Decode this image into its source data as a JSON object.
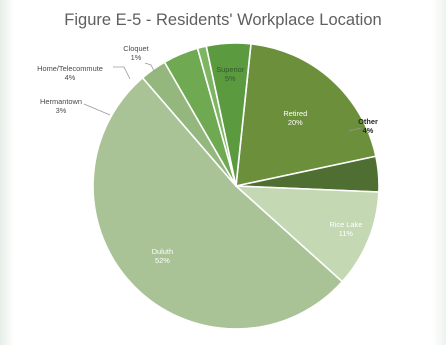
{
  "chart_data": {
    "type": "pie",
    "title": "Figure E-5 - Residents' Workplace Location",
    "slices": [
      {
        "name": "Retired",
        "value": 20,
        "label": "20%",
        "color": "#6b8f3a"
      },
      {
        "name": "Other",
        "value": 4,
        "label": "4%",
        "color": "#4f6e31"
      },
      {
        "name": "Rice Lake",
        "value": 11,
        "label": "11%",
        "color": "#c5d8b4"
      },
      {
        "name": "Duluth",
        "value": 52,
        "label": "52%",
        "color": "#a9c396"
      },
      {
        "name": "Hermantown",
        "value": 3,
        "label": "3%",
        "color": "#94b77e"
      },
      {
        "name": "Home/Telecommute",
        "value": 4,
        "label": "4%",
        "color": "#6fa952"
      },
      {
        "name": "Cloquet",
        "value": 1,
        "label": "1%",
        "color": "#7db563"
      },
      {
        "name": "Superior",
        "value": 5,
        "label": "5%",
        "color": "#5c9a40"
      }
    ]
  }
}
